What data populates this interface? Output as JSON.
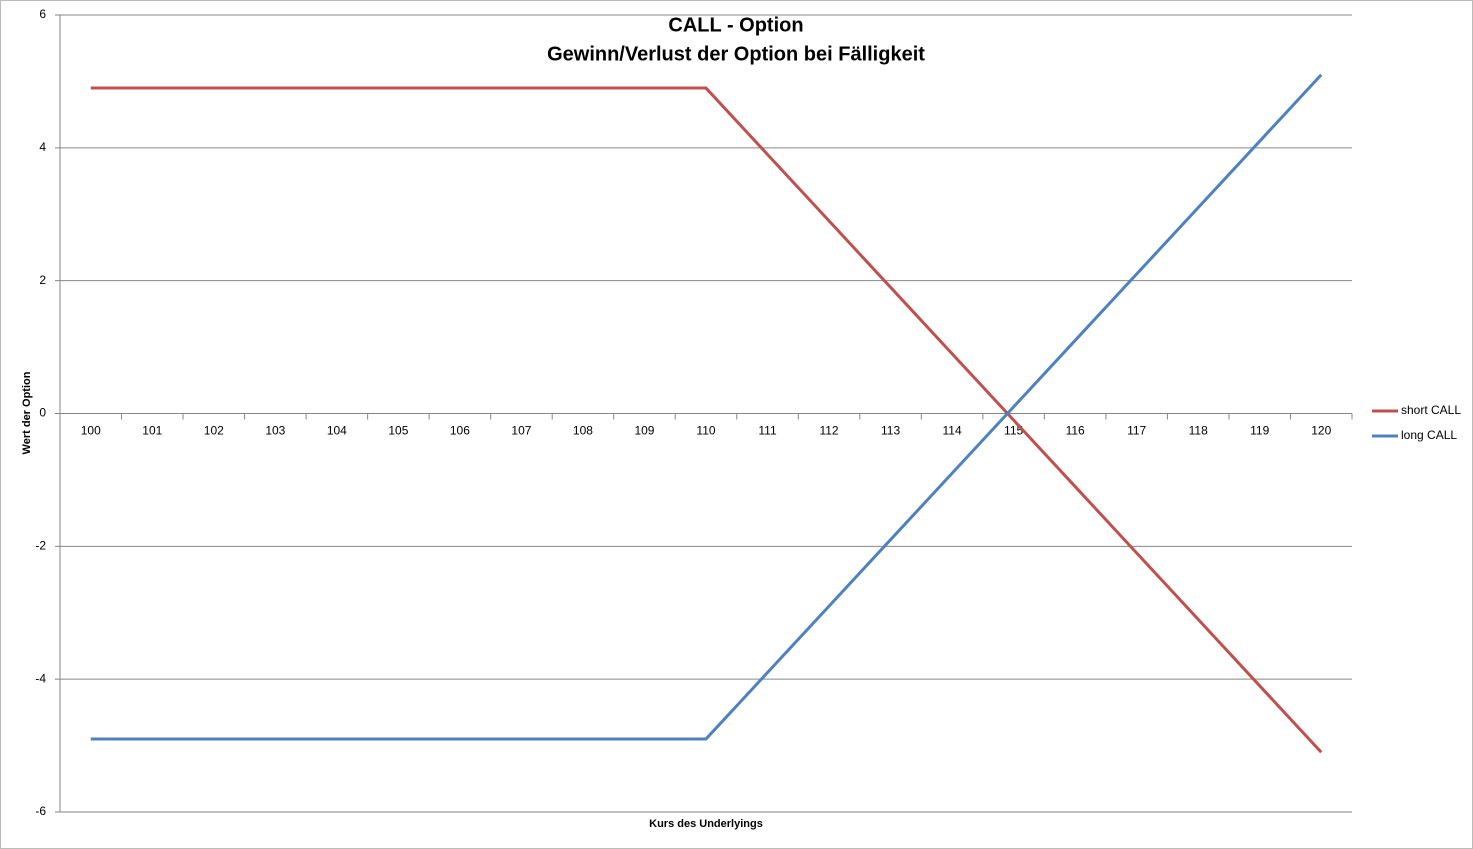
{
  "chart_data": {
    "type": "line",
    "title": "CALL - Option",
    "subtitle": "Gewinn/Verlust der Option bei Fälligkeit",
    "x_label": "Kurs des Underlyings",
    "y_label": "Wert der Option",
    "categories": [
      100,
      101,
      102,
      103,
      104,
      105,
      106,
      107,
      108,
      109,
      110,
      111,
      112,
      113,
      114,
      115,
      116,
      117,
      118,
      119,
      120
    ],
    "series": [
      {
        "name": "short CALL",
        "color": "#c0504d",
        "values": [
          4.9,
          4.9,
          4.9,
          4.9,
          4.9,
          4.9,
          4.9,
          4.9,
          4.9,
          4.9,
          4.9,
          3.9,
          2.9,
          1.9,
          0.9,
          -0.1,
          -1.1,
          -2.1,
          -3.1,
          -4.1,
          -5.1
        ]
      },
      {
        "name": "long CALL",
        "color": "#4f81bd",
        "values": [
          -4.9,
          -4.9,
          -4.9,
          -4.9,
          -4.9,
          -4.9,
          -4.9,
          -4.9,
          -4.9,
          -4.9,
          -4.9,
          -3.9,
          -2.9,
          -1.9,
          -0.9,
          0.1,
          1.1,
          2.1,
          3.1,
          4.1,
          5.1
        ]
      }
    ],
    "ylim": [
      -6,
      6
    ],
    "yticks": [
      -6,
      -4,
      -2,
      0,
      2,
      4,
      6
    ],
    "grid": true,
    "legend": "right"
  }
}
